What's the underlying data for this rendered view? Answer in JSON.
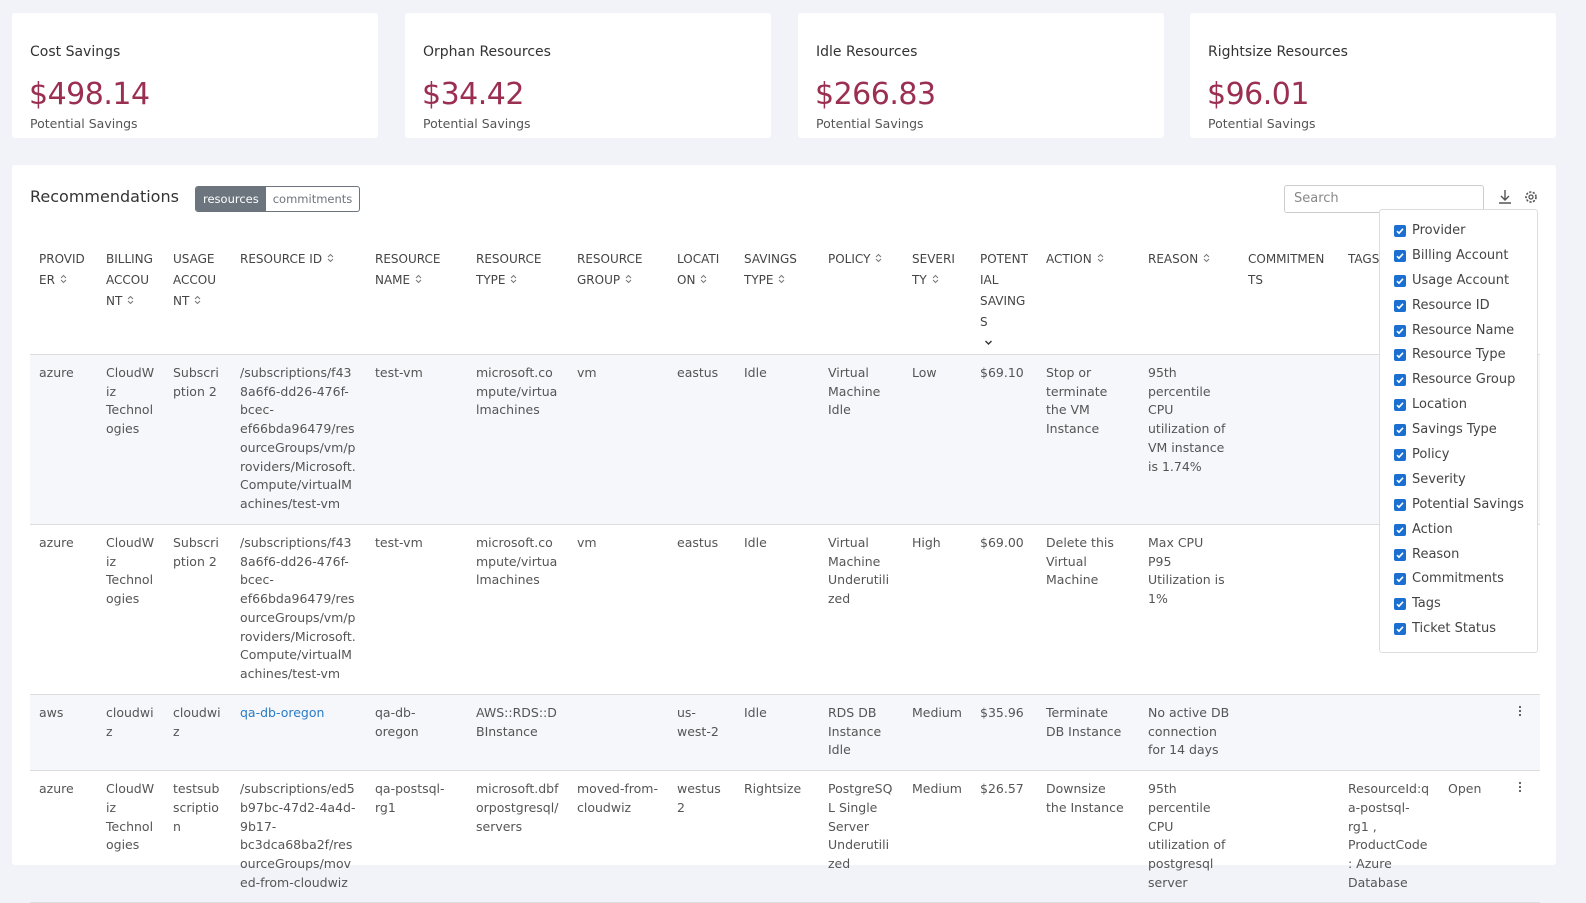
{
  "cards": [
    {
      "title": "Cost Savings",
      "value": "$498.14",
      "label": "Potential Savings"
    },
    {
      "title": "Orphan Resources",
      "value": "$34.42",
      "label": "Potential Savings"
    },
    {
      "title": "Idle Resources",
      "value": "$266.83",
      "label": "Potential Savings"
    },
    {
      "title": "Rightsize Resources",
      "value": "$96.01",
      "label": "Potential Savings"
    }
  ],
  "recommendations": {
    "title": "Recommendations",
    "tabs": [
      "resources",
      "commitments"
    ],
    "active_tab": 0,
    "search_placeholder": "Search"
  },
  "table": {
    "headers": [
      {
        "key": "provider",
        "label": "PROVIDER",
        "sortable": true
      },
      {
        "key": "billing_account",
        "label": "BILLING ACCOUNT",
        "sortable": true
      },
      {
        "key": "usage_account",
        "label": "USAGE ACCOUNT",
        "sortable": true
      },
      {
        "key": "resource_id",
        "label": "RESOURCE ID",
        "sortable": true
      },
      {
        "key": "resource_name",
        "label": "RESOURCE NAME",
        "sortable": true
      },
      {
        "key": "resource_type",
        "label": "RESOURCE TYPE",
        "sortable": true
      },
      {
        "key": "resource_group",
        "label": "RESOURCE GROUP",
        "sortable": true
      },
      {
        "key": "location",
        "label": "LOCATION",
        "sortable": true
      },
      {
        "key": "savings_type",
        "label": "SAVINGS TYPE",
        "sortable": true
      },
      {
        "key": "policy",
        "label": "POLICY",
        "sortable": true
      },
      {
        "key": "severity",
        "label": "SEVERITY",
        "sortable": true
      },
      {
        "key": "potential_savings",
        "label": "POTENTIAL SAVINGS",
        "sortable": true,
        "sorted": "desc"
      },
      {
        "key": "action",
        "label": "ACTION",
        "sortable": true
      },
      {
        "key": "reason",
        "label": "REASON",
        "sortable": true
      },
      {
        "key": "commitments",
        "label": "COMMITMENTS",
        "sortable": false
      },
      {
        "key": "tags",
        "label": "TAGS",
        "sortable": false
      },
      {
        "key": "ticket_status",
        "sortable": false
      }
    ],
    "rows": [
      {
        "provider": "azure",
        "billing_account": "CloudWiz Technologies",
        "usage_account": "Subscription 2",
        "resource_id": "/subscriptions/f438a6f6-dd26-476f-bcec-ef66bda96479/resourceGroups/vm/providers/Microsoft.Compute/virtualMachines/test-vm",
        "resource_name": "test-vm",
        "resource_type": "microsoft.compute/virtualmachines",
        "resource_group": "vm",
        "location": "eastus",
        "savings_type": "Idle",
        "policy": "Virtual Machine Idle",
        "severity": "Low",
        "potential_savings": "$69.10",
        "action": "Stop or terminate the VM Instance",
        "reason": "95th percentile CPU utilization of VM instance is 1.74%"
      },
      {
        "provider": "azure",
        "billing_account": "CloudWiz Technologies",
        "usage_account": "Subscription 2",
        "resource_id": "/subscriptions/f438a6f6-dd26-476f-bcec-ef66bda96479/resourceGroups/vm/providers/Microsoft.Compute/virtualMachines/test-vm",
        "resource_name": "test-vm",
        "resource_type": "microsoft.compute/virtualmachines",
        "resource_group": "vm",
        "location": "eastus",
        "savings_type": "Idle",
        "policy": "Virtual Machine Underutilized",
        "severity": "High",
        "potential_savings": "$69.00",
        "action": "Delete this Virtual Machine",
        "reason": "Max CPU P95 Utilization is 1%"
      },
      {
        "provider": "aws",
        "billing_account": "cloudwiz",
        "usage_account": "cloudwiz",
        "resource_id": "qa-db-oregon",
        "link": true,
        "resource_name": "qa-db-oregon",
        "resource_type": "AWS::RDS::DBInstance",
        "location": "us-west-2",
        "savings_type": "Idle",
        "policy": "RDS DB Instance Idle",
        "severity": "Medium",
        "potential_savings": "$35.96",
        "action": "Terminate DB Instance",
        "reason": "No active DB connection for 14 days",
        "menu": true
      },
      {
        "provider": "azure",
        "billing_account": "CloudWiz Technologies",
        "usage_account": "testsubscription",
        "resource_id": "/subscriptions/ed5b97bc-47d2-4a4d-9b17-bc3dca68ba2f/resourceGroups/moved-from-cloudwiz",
        "resource_name": "qa-postsql-rg1",
        "resource_type": "microsoft.dbforpostgresql/servers",
        "resource_group": "moved-from-cloudwiz",
        "location": "westus2",
        "savings_type": "Rightsize",
        "policy": "PostgreSQL Single Server Underutilized",
        "severity": "Medium",
        "potential_savings": "$26.57",
        "action": "Downsize the Instance",
        "reason": "95th percentile CPU utilization of postgresql server",
        "tags": "ResourceId:qa-postsql-rg1 , ProductCode: Azure Database",
        "ticket_status": "Open",
        "menu": true
      }
    ]
  },
  "column_menu": [
    {
      "label": "Provider",
      "checked": true
    },
    {
      "label": "Billing Account",
      "checked": true
    },
    {
      "label": "Usage Account",
      "checked": true
    },
    {
      "label": "Resource ID",
      "checked": true
    },
    {
      "label": "Resource Name",
      "checked": true
    },
    {
      "label": "Resource Type",
      "checked": true
    },
    {
      "label": "Resource Group",
      "checked": true
    },
    {
      "label": "Location",
      "checked": true
    },
    {
      "label": "Savings Type",
      "checked": true
    },
    {
      "label": "Policy",
      "checked": true
    },
    {
      "label": "Severity",
      "checked": true
    },
    {
      "label": "Potential Savings",
      "checked": true
    },
    {
      "label": "Action",
      "checked": true
    },
    {
      "label": "Reason",
      "checked": true
    },
    {
      "label": "Commitments",
      "checked": true
    },
    {
      "label": "Tags",
      "checked": true
    },
    {
      "label": "Ticket Status",
      "checked": true
    }
  ]
}
